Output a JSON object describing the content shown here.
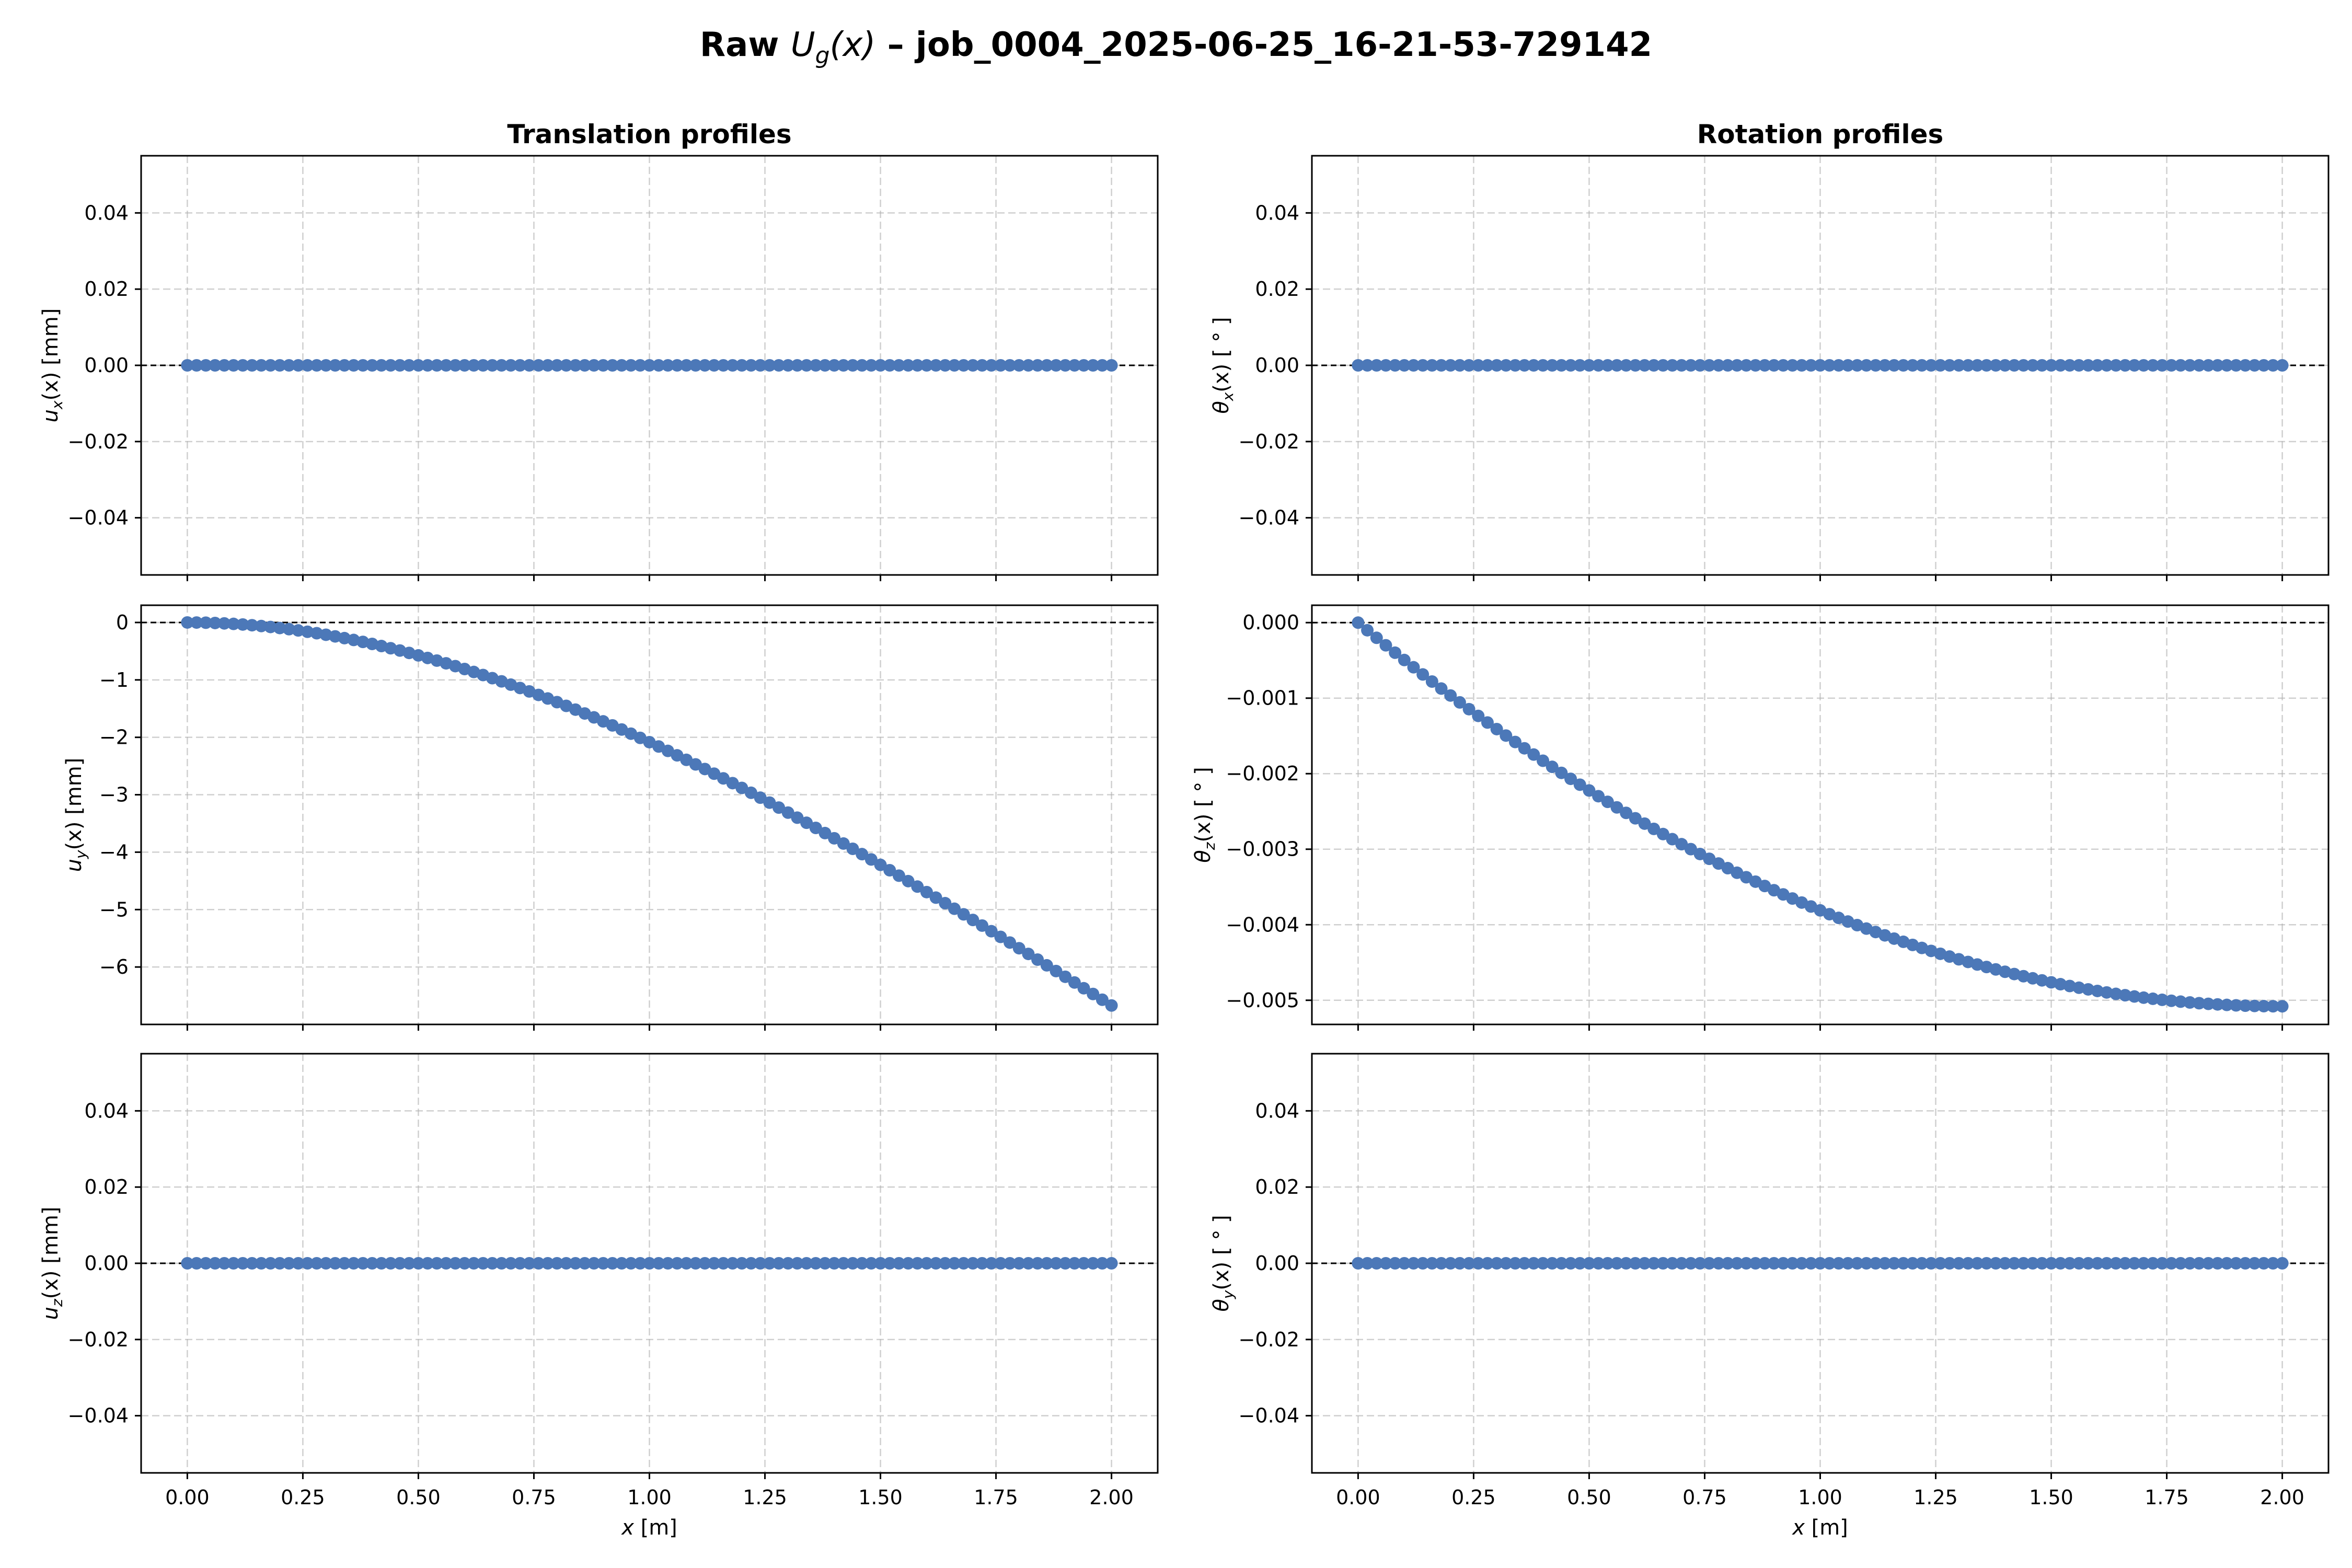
{
  "figure": {
    "suptitle": {
      "prefix": "Raw ",
      "math_base": "U",
      "math_sub": "g",
      "math_arg": "(x)",
      "suffix": " – job_0004_2025-06-25_16-21-53-729142"
    }
  },
  "colors": {
    "series": "#4c78b8",
    "zero_line": "#000000",
    "grid": "#b0b0b0"
  },
  "chart_data": [
    {
      "id": "ux",
      "type": "line",
      "title": "Translation profiles",
      "ylabel": {
        "sym": "u",
        "sub": "x",
        "arg": "(x)",
        "unit": " [mm]"
      },
      "xlabel": "",
      "xlim": [
        -0.1,
        2.1
      ],
      "ylim": [
        -0.055,
        0.055
      ],
      "xticks": [
        0,
        0.25,
        0.5,
        0.75,
        1.0,
        1.25,
        1.5,
        1.75,
        2.0
      ],
      "xtick_labels": [],
      "yticks": [
        -0.04,
        -0.02,
        0.0,
        0.02,
        0.04
      ],
      "ytick_labels": [
        "−0.04",
        "−0.02",
        "0.00",
        "0.02",
        "0.04"
      ],
      "reference_line_y": 0,
      "grid": true,
      "series": [
        {
          "profile": "zero",
          "x_start": 0,
          "x_end": 2.0,
          "n_points": 101
        }
      ]
    },
    {
      "id": "thx",
      "type": "line",
      "title": "Rotation profiles",
      "ylabel": {
        "sym": "θ",
        "sub": "x",
        "arg": "(x)",
        "unit": " [ ° ]"
      },
      "xlabel": "",
      "xlim": [
        -0.1,
        2.1
      ],
      "ylim": [
        -0.055,
        0.055
      ],
      "xticks": [
        0,
        0.25,
        0.5,
        0.75,
        1.0,
        1.25,
        1.5,
        1.75,
        2.0
      ],
      "xtick_labels": [],
      "yticks": [
        -0.04,
        -0.02,
        0.0,
        0.02,
        0.04
      ],
      "ytick_labels": [
        "−0.04",
        "−0.02",
        "0.00",
        "0.02",
        "0.04"
      ],
      "reference_line_y": 0,
      "grid": true,
      "series": [
        {
          "profile": "zero",
          "x_start": 0,
          "x_end": 2.0,
          "n_points": 101
        }
      ]
    },
    {
      "id": "uy",
      "type": "line",
      "title": "",
      "ylabel": {
        "sym": "u",
        "sub": "y",
        "arg": "(x)",
        "unit": " [mm]"
      },
      "xlabel": "",
      "xlim": [
        -0.1,
        2.1
      ],
      "ylim": [
        -7.0,
        0.3
      ],
      "xticks": [
        0,
        0.25,
        0.5,
        0.75,
        1.0,
        1.25,
        1.5,
        1.75,
        2.0
      ],
      "xtick_labels": [],
      "yticks": [
        -6,
        -5,
        -4,
        -3,
        -2,
        -1,
        0
      ],
      "ytick_labels": [
        "−6",
        "−5",
        "−4",
        "−3",
        "−2",
        "−1",
        "0"
      ],
      "reference_line_y": 0,
      "grid": true,
      "series": [
        {
          "profile": "deflection",
          "x_start": 0,
          "x_end": 2.0,
          "n_points": 101,
          "end_value": -6.67
        }
      ]
    },
    {
      "id": "thz",
      "type": "line",
      "title": "",
      "ylabel": {
        "sym": "θ",
        "sub": "z",
        "arg": "(x)",
        "unit": " [ ° ]"
      },
      "xlabel": "",
      "xlim": [
        -0.1,
        2.1
      ],
      "ylim": [
        -0.00532,
        0.00023
      ],
      "xticks": [
        0,
        0.25,
        0.5,
        0.75,
        1.0,
        1.25,
        1.5,
        1.75,
        2.0
      ],
      "xtick_labels": [],
      "yticks": [
        -0.005,
        -0.004,
        -0.003,
        -0.002,
        -0.001,
        0.0
      ],
      "ytick_labels": [
        "−0.005",
        "−0.004",
        "−0.003",
        "−0.002",
        "−0.001",
        "0.000"
      ],
      "reference_line_y": 0,
      "grid": true,
      "series": [
        {
          "profile": "slope",
          "x_start": 0,
          "x_end": 2.0,
          "n_points": 101,
          "end_value": -0.00508
        }
      ]
    },
    {
      "id": "uz",
      "type": "line",
      "title": "",
      "ylabel": {
        "sym": "u",
        "sub": "z",
        "arg": "(x)",
        "unit": " [mm]"
      },
      "xlabel": "x [m]",
      "xlim": [
        -0.1,
        2.1
      ],
      "ylim": [
        -0.055,
        0.055
      ],
      "xticks": [
        0,
        0.25,
        0.5,
        0.75,
        1.0,
        1.25,
        1.5,
        1.75,
        2.0
      ],
      "xtick_labels": [
        "0.00",
        "0.25",
        "0.50",
        "0.75",
        "1.00",
        "1.25",
        "1.50",
        "1.75",
        "2.00"
      ],
      "yticks": [
        -0.04,
        -0.02,
        0.0,
        0.02,
        0.04
      ],
      "ytick_labels": [
        "−0.04",
        "−0.02",
        "0.00",
        "0.02",
        "0.04"
      ],
      "reference_line_y": 0,
      "grid": true,
      "series": [
        {
          "profile": "zero",
          "x_start": 0,
          "x_end": 2.0,
          "n_points": 101
        }
      ]
    },
    {
      "id": "thy",
      "type": "line",
      "title": "",
      "ylabel": {
        "sym": "θ",
        "sub": "y",
        "arg": "(x)",
        "unit": " [ ° ]"
      },
      "xlabel": "x [m]",
      "xlim": [
        -0.1,
        2.1
      ],
      "ylim": [
        -0.055,
        0.055
      ],
      "xticks": [
        0,
        0.25,
        0.5,
        0.75,
        1.0,
        1.25,
        1.5,
        1.75,
        2.0
      ],
      "xtick_labels": [
        "0.00",
        "0.25",
        "0.50",
        "0.75",
        "1.00",
        "1.25",
        "1.50",
        "1.75",
        "2.00"
      ],
      "yticks": [
        -0.04,
        -0.02,
        0.0,
        0.02,
        0.04
      ],
      "ytick_labels": [
        "−0.04",
        "−0.02",
        "0.00",
        "0.02",
        "0.04"
      ],
      "reference_line_y": 0,
      "grid": true,
      "series": [
        {
          "profile": "zero",
          "x_start": 0,
          "x_end": 2.0,
          "n_points": 101
        }
      ]
    }
  ]
}
